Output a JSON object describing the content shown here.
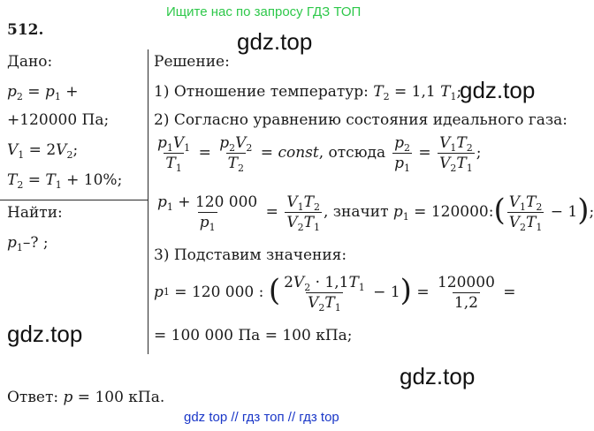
{
  "banner": "Ищите нас по запросу ГДЗ ТОП",
  "problem_number": "512.",
  "watermarks": [
    "gdz.top",
    "gdz.top",
    "gdz.top",
    "gdz.top"
  ],
  "given": {
    "heading": "Дано:",
    "lines": [
      "p₂ = p₁ +",
      "+120000 Па;",
      "V₁ = 2V₂;",
      "T₂ = T₁ + 10%;"
    ]
  },
  "find": {
    "heading": "Найти:",
    "line": "p₁–? ;"
  },
  "solution": {
    "heading": "Решение:",
    "step1": "1) Отношение температур: T₂ = 1,1 T₁;",
    "step2": "2) Согласно уравнению состояния идеального газа:",
    "eq_state": "p₁V₁/T₁ = p₂V₂/T₂ = const, отсюда p₂/p₁ = V₁T₂/(V₂T₁);",
    "eq_p1": "(p₁ + 120 000)/p₁ = V₁T₂/(V₂T₁), значит p₁ = 120000:(V₁T₂/(V₂T₁) − 1);",
    "step3": "3) Подставим значения:",
    "eq_subst": "p₁ = 120 000 : (2V₂ · 1,1T₁/(V₂T₁) − 1) = 120000/1,2 =",
    "eq_result": "= 100 000 Па = 100 кПа;"
  },
  "answer": "Ответ: p = 100 кПа.",
  "footer": "gdz top  //  гдз топ  //  гдз top",
  "text_tokens": {
    "comma_then": ", отсюда",
    "then_p1": ", значит",
    "const": "const",
    "n120000": "120 000",
    "n120000b": "120000",
    "n1_2": "1,2"
  }
}
